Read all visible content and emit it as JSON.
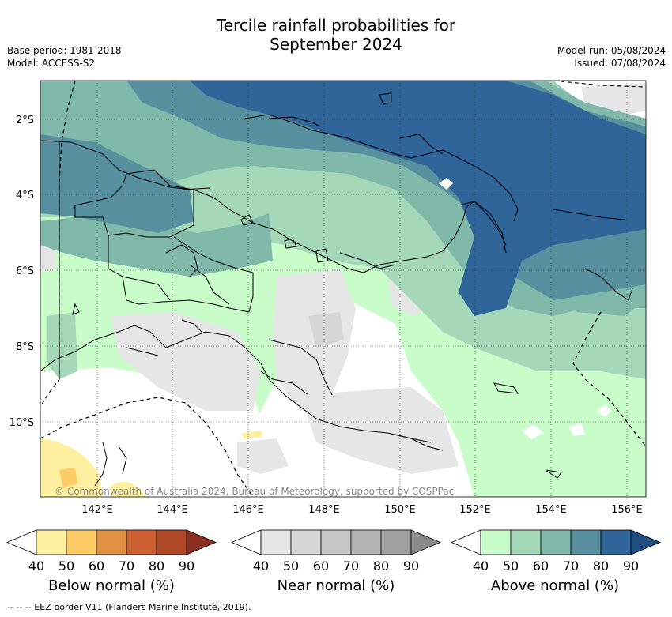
{
  "title": {
    "line1": "Tercile rainfall probabilities for",
    "line2": "September 2024"
  },
  "meta": {
    "base_period": "Base period: 1981-2018",
    "model": "Model: ACCESS-S2",
    "model_run": "Model run: 05/08/2024",
    "issued": "Issued: 07/08/2024"
  },
  "map": {
    "lat_ticks": [
      "2°S",
      "4°S",
      "6°S",
      "8°S",
      "10°S"
    ],
    "lon_ticks": [
      "142°E",
      "144°E",
      "146°E",
      "148°E",
      "150°E",
      "152°E",
      "154°E",
      "156°E"
    ],
    "copyright": "© Commonwealth of Australia 2024, Bureau of Meteorology, supported by COSPPac"
  },
  "colorbars": [
    {
      "label": "Below normal (%)",
      "ticks": [
        "40",
        "50",
        "60",
        "70",
        "80",
        "90"
      ],
      "colors": [
        "#ffffff",
        "#fff0a0",
        "#fdcc66",
        "#e09040",
        "#cc6030",
        "#b04828",
        "#8b3020"
      ]
    },
    {
      "label": "Near normal (%)",
      "ticks": [
        "40",
        "50",
        "60",
        "70",
        "80",
        "90"
      ],
      "colors": [
        "#ffffff",
        "#e6e6e6",
        "#d6d6d6",
        "#c6c6c6",
        "#b4b4b4",
        "#a0a0a0",
        "#8a8a8a"
      ]
    },
    {
      "label": "Above normal (%)",
      "ticks": [
        "40",
        "50",
        "60",
        "70",
        "80",
        "90"
      ],
      "colors": [
        "#ffffff",
        "#c8fcc8",
        "#a4d8b8",
        "#80b8aa",
        "#5890a0",
        "#2f6598",
        "#1f4e80"
      ]
    }
  ],
  "footer": "-- -- -- EEZ border V11 (Flanders Marine Institute, 2019)."
}
